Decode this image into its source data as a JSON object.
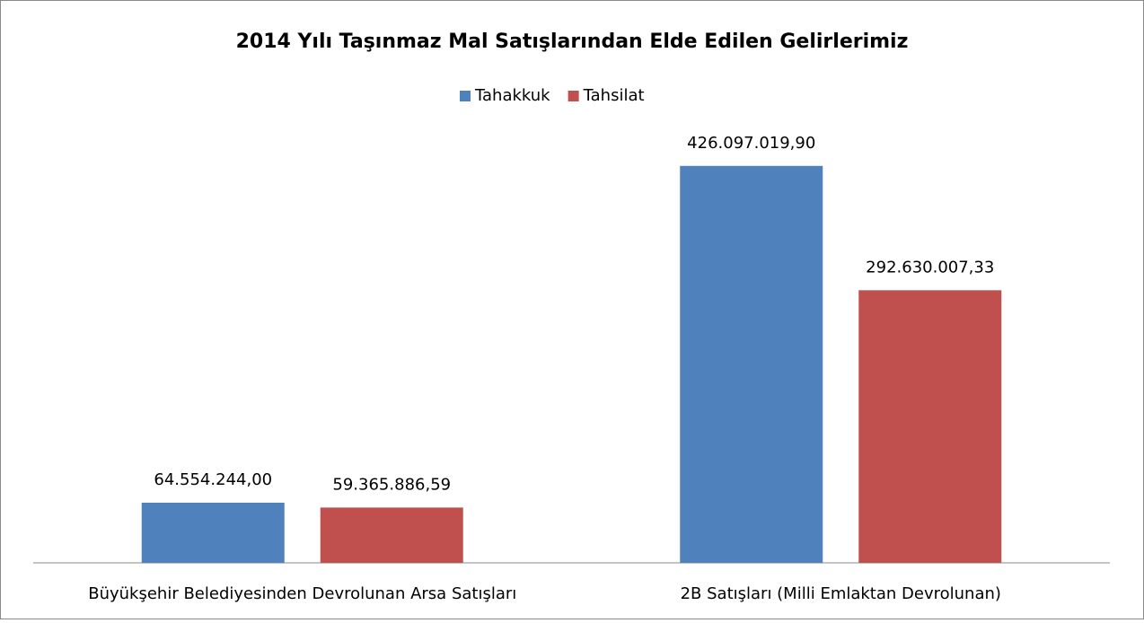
{
  "chart_data": {
    "type": "bar",
    "title": "2014 Yılı Taşınmaz Mal Satışlarından Elde Edilen Gelirlerimiz",
    "categories": [
      "Büyükşehir Belediyesinden Devrolunan Arsa Satışları",
      "2B Satışları (Milli Emlaktan Devrolunan)"
    ],
    "series": [
      {
        "name": "Tahakkuk",
        "color": "#4f81bd",
        "values": [
          64554244.0,
          426097019.9
        ],
        "value_labels": [
          "64.554.244,00",
          "426.097.019,90"
        ]
      },
      {
        "name": "Tahsilat",
        "color": "#c0504d",
        "values": [
          59365886.59,
          292630007.33
        ],
        "value_labels": [
          "59.365.886,59",
          "292.630.007,33"
        ]
      }
    ],
    "ylim": [
      0,
      450000000
    ],
    "legend": "top"
  }
}
